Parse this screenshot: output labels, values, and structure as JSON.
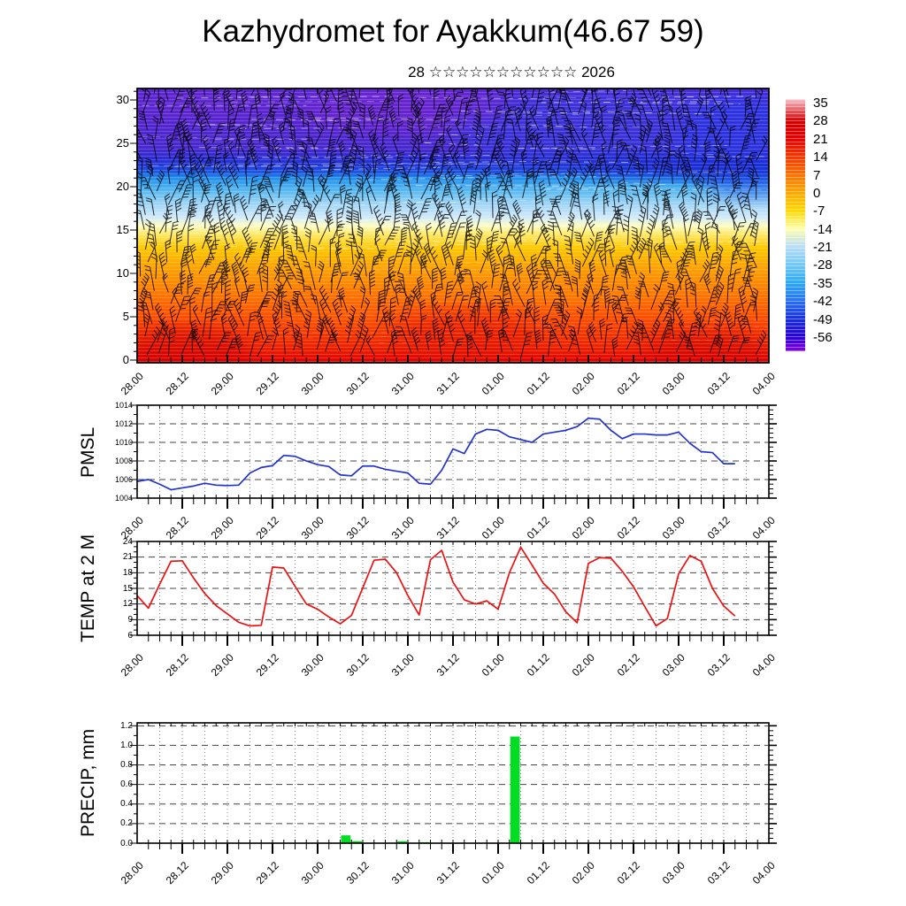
{
  "title": "Kazhydromet for Ayakkum(46.67 59)",
  "date_line": "28 ☆☆☆☆☆☆☆☆☆☆☆ 2026",
  "time_axis": {
    "labels": [
      "28.00",
      "28.12",
      "29.00",
      "29.12",
      "30.00",
      "30.12",
      "31.00",
      "31.12",
      "01.00",
      "01.12",
      "02.00",
      "02.12",
      "03.00",
      "03.12",
      "04.00"
    ],
    "label_step_hours": 12,
    "minor_tick_hours": 3,
    "span_days": 7
  },
  "colors": {
    "pmsl_line": "#2233cc",
    "temp_line": "#ee1111",
    "precip_bar": "#00dd22",
    "grid_dash": "#444444",
    "grid_dot": "#888888",
    "axis": "#000000",
    "background": "#ffffff"
  },
  "chart_data": [
    {
      "id": "temperature_height_cross_section",
      "type": "heatmap",
      "overlay": "wind-barbs",
      "ylim": [
        0,
        31
      ],
      "yticks": [
        0,
        5,
        10,
        15,
        20,
        25,
        30
      ],
      "colorbar_ticks": [
        35,
        28,
        21,
        14,
        7,
        0,
        -7,
        -14,
        -21,
        -28,
        -35,
        -42,
        -49,
        -56
      ],
      "colorbar_tick_colors": [
        "#f2a0a8",
        "#d40000",
        "#e80000",
        "#f83800",
        "#ff7000",
        "#ffa800",
        "#ffd800",
        "#ffffb0",
        "#b8dcf8",
        "#70c8f8",
        "#28a8f8",
        "#2870f8",
        "#1830e0",
        "#2800d8"
      ],
      "colorbar_top_color": "#f8c8cc",
      "colorbar_bottom_color": "#8800e8",
      "profile_levels": [
        {
          "level": 0,
          "color": "#e00000"
        },
        {
          "level": 2,
          "color": "#ee2600"
        },
        {
          "level": 5,
          "color": "#ff4c00"
        },
        {
          "level": 8,
          "color": "#ff7a00"
        },
        {
          "level": 11,
          "color": "#ffa600"
        },
        {
          "level": 13,
          "color": "#ffc800"
        },
        {
          "level": 14.5,
          "color": "#ffe866"
        },
        {
          "level": 15.5,
          "color": "#fdfdc8"
        },
        {
          "level": 16.5,
          "color": "#cfe9fb"
        },
        {
          "level": 18,
          "color": "#9ed4f6"
        },
        {
          "level": 19.5,
          "color": "#55b8f0"
        },
        {
          "level": 21,
          "color": "#1f8cec"
        },
        {
          "level": 22,
          "color": "#2248e0"
        },
        {
          "level": 23,
          "color": "#2d2ed2"
        },
        {
          "level": 24.5,
          "color": "#4a28ce"
        },
        {
          "level": 27,
          "color": "#5326cf"
        },
        {
          "level": 31,
          "color": "#5b2ad6"
        }
      ]
    },
    {
      "id": "pmsl",
      "type": "line",
      "label": "PMSL",
      "ylim": [
        1004,
        1014
      ],
      "yticks": [
        1004,
        1006,
        1008,
        1010,
        1012,
        1014
      ],
      "start": "28.00",
      "step_hours": 3,
      "values": [
        1005.8,
        1006.0,
        1005.5,
        1004.9,
        1005.1,
        1005.3,
        1005.6,
        1005.4,
        1005.35,
        1005.4,
        1006.7,
        1007.3,
        1007.5,
        1008.6,
        1008.5,
        1008.0,
        1007.6,
        1007.4,
        1006.5,
        1006.4,
        1007.45,
        1007.45,
        1007.1,
        1006.9,
        1006.7,
        1005.6,
        1005.5,
        1007.0,
        1009.3,
        1008.8,
        1010.9,
        1011.4,
        1011.3,
        1010.6,
        1010.3,
        1010.0,
        1010.9,
        1011.1,
        1011.3,
        1011.7,
        1012.6,
        1012.5,
        1011.3,
        1010.4,
        1010.9,
        1010.9,
        1010.8,
        1010.8,
        1011.1,
        1009.9,
        1009.0,
        1008.9,
        1007.7,
        1007.7
      ]
    },
    {
      "id": "temp_2m",
      "type": "line",
      "label": "TEMP at 2 M",
      "ylim": [
        6,
        24
      ],
      "yticks": [
        6,
        9,
        12,
        15,
        18,
        21,
        24
      ],
      "start": "28.00",
      "step_hours": 3,
      "values": [
        13.6,
        11.2,
        15.8,
        20.2,
        20.3,
        17.0,
        14.0,
        11.7,
        10.1,
        8.5,
        7.8,
        7.9,
        19.1,
        18.9,
        15.4,
        12.0,
        11.0,
        9.5,
        8.2,
        9.8,
        15.1,
        20.4,
        20.6,
        18.0,
        13.6,
        9.9,
        20.5,
        22.3,
        16.2,
        12.8,
        12.0,
        12.6,
        11.0,
        18.0,
        22.9,
        19.5,
        16.0,
        13.9,
        10.5,
        8.4,
        19.8,
        20.9,
        20.8,
        18.3,
        15.3,
        11.5,
        7.8,
        9.2,
        17.8,
        21.3,
        20.2,
        15.0,
        11.6,
        9.7
      ]
    },
    {
      "id": "precip",
      "type": "bar",
      "label": "PRECIP, mm",
      "ylim": [
        0,
        1.23
      ],
      "yticks": [
        0,
        0.2,
        0.4,
        0.6,
        0.8,
        1.0,
        1.2
      ],
      "ytick_labels": [
        "0.0",
        "0.2",
        "0.4",
        "0.6",
        "0.8",
        "1.0",
        "1.2"
      ],
      "start": "28.00",
      "step_hours": 3,
      "values": [
        0,
        0,
        0,
        0,
        0,
        0,
        0,
        0,
        0,
        0,
        0,
        0,
        0,
        0,
        0,
        0,
        0,
        0,
        0.08,
        0.02,
        0,
        0,
        0,
        0.02,
        0,
        0.01,
        0,
        0,
        0,
        0,
        0,
        0,
        0,
        1.09,
        0,
        0,
        0,
        0,
        0,
        0,
        0,
        0,
        0,
        0,
        0,
        0,
        0,
        0,
        0,
        0,
        0,
        0,
        0,
        0
      ]
    }
  ]
}
